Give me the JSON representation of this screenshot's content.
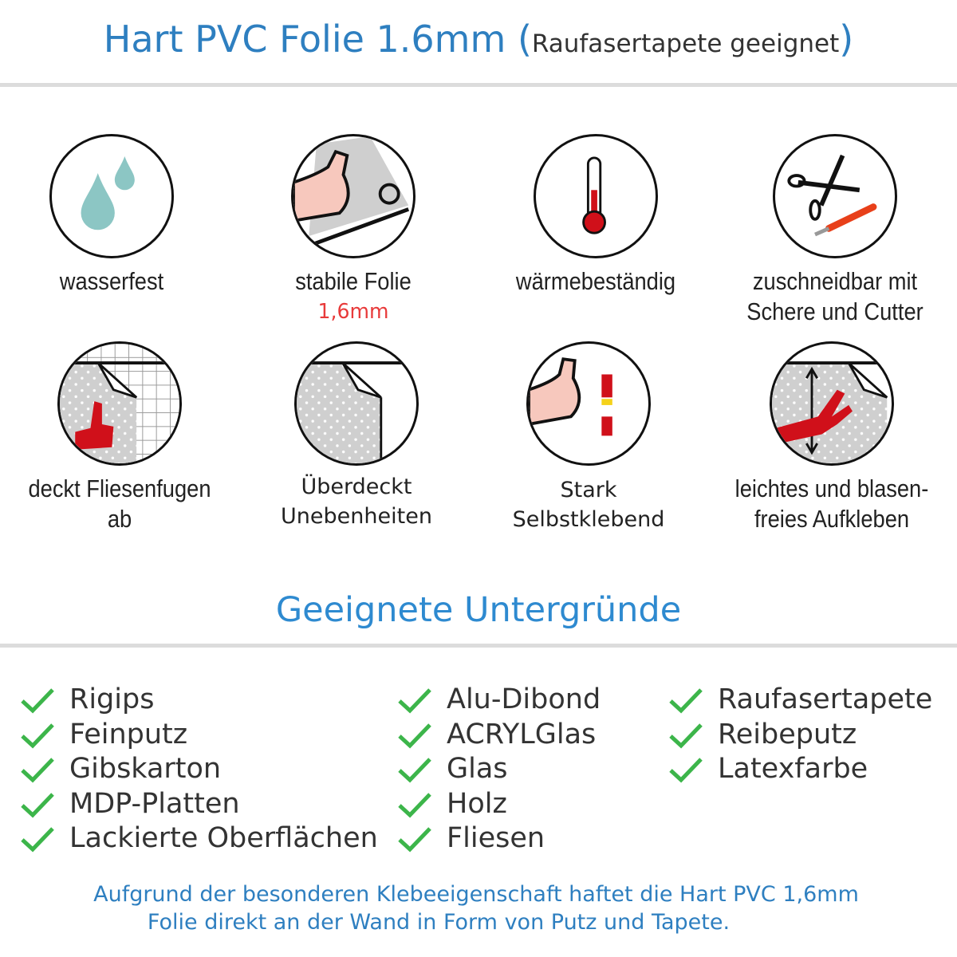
{
  "header": {
    "title_main": "Hart PVC Folie 1.6mm",
    "paren_open": "(",
    "title_sub": "Raufasertapete geeignet",
    "paren_close": ")"
  },
  "features": [
    {
      "icon": "water-drops-icon",
      "label": "wasserfest"
    },
    {
      "icon": "strong-arm-foil-icon",
      "label": "stabile Folie",
      "highlight": "1,6mm"
    },
    {
      "icon": "thermometer-icon",
      "label": "wärmebeständig"
    },
    {
      "icon": "scissors-cutter-icon",
      "label": "zuschneidbar mit",
      "label2": "Schere und Cutter"
    },
    {
      "icon": "thumbs-up-tiles-icon",
      "label": "deckt Fliesenfugen ab"
    },
    {
      "icon": "foil-corner-icon",
      "label": "Überdeckt",
      "label2": "Unebenheiten"
    },
    {
      "icon": "strong-arm-glue-icon",
      "label": "Stark",
      "label2": "Selbstklebend"
    },
    {
      "icon": "hand-smoothing-icon",
      "label": "leichtes und blasen-",
      "label2": "freies Aufkleben"
    }
  ],
  "section_title": "Geeignete Untergründe",
  "surfaces": [
    [
      "Rigips",
      "Feinputz",
      "Gibskarton",
      "MDP-Platten",
      "Lackierte Oberflächen"
    ],
    [
      "Alu-Dibond",
      "ACRYLGlas",
      "Glas",
      "Holz",
      "Fliesen"
    ],
    [
      "Raufasertapete",
      "Reibeputz",
      "Latexfarbe"
    ]
  ],
  "footer": {
    "line1": "Aufgrund der besonderen Klebeeigenschaft haftet die Hart PVC 1,6mm",
    "line2": "Folie direkt an der Wand in Form von Putz und Tapete."
  },
  "colors": {
    "title_blue": "#2e7fc0",
    "check_green": "#3cb54a",
    "highlight_red": "#e83a3a",
    "water": "#8cc6c4",
    "accent_red": "#d0101a"
  }
}
